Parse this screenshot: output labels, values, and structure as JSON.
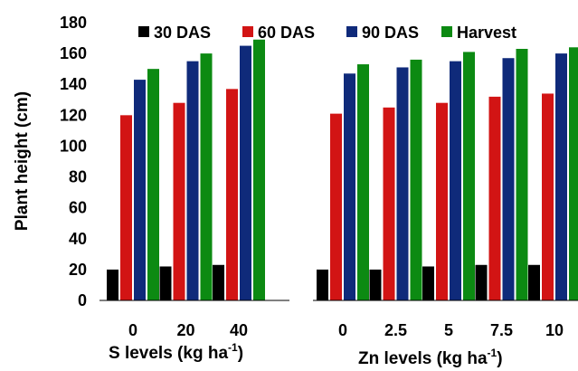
{
  "chart_data": {
    "type": "bar",
    "ylabel": "Plant height (cm)",
    "ylim": [
      0,
      180
    ],
    "yticks": [
      "0",
      "20",
      "40",
      "60",
      "80",
      "100",
      "120",
      "140",
      "160",
      "180"
    ],
    "grid": false,
    "legend_position": "top",
    "series": [
      {
        "name": "30 DAS",
        "color": "#000000"
      },
      {
        "name": "60 DAS",
        "color": "#d21414"
      },
      {
        "name": "90 DAS",
        "color": "#0f2a7a"
      },
      {
        "name": "Harvest",
        "color": "#0c8a12"
      }
    ],
    "groups": [
      {
        "xlabel": "S levels (kg ha",
        "xlabel_sup": "-1",
        "xlabel_close": ")",
        "categories": [
          "0",
          "20",
          "40"
        ],
        "values": [
          [
            20,
            22,
            23
          ],
          [
            120,
            128,
            137
          ],
          [
            143,
            155,
            165
          ],
          [
            150,
            160,
            169
          ]
        ]
      },
      {
        "xlabel": "Zn levels (kg ha",
        "xlabel_sup": "-1",
        "xlabel_close": ")",
        "categories": [
          "0",
          "2.5",
          "5",
          "7.5",
          "10"
        ],
        "values": [
          [
            20,
            20,
            22,
            23,
            23
          ],
          [
            121,
            125,
            128,
            132,
            134
          ],
          [
            147,
            151,
            155,
            157,
            160
          ],
          [
            153,
            156,
            161,
            163,
            164
          ]
        ]
      }
    ]
  }
}
